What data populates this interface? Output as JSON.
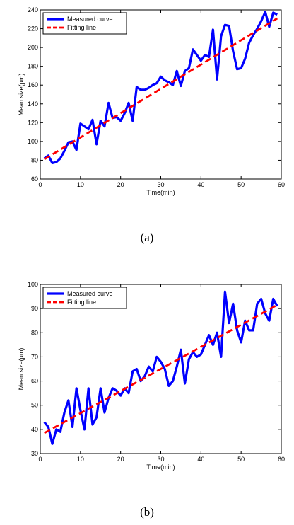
{
  "chart_data": [
    {
      "type": "line",
      "caption": "(a)",
      "xlabel": "Time(min)",
      "ylabel": "Mean size(μm)",
      "xlim": [
        0,
        60
      ],
      "ylim": [
        60,
        240
      ],
      "xticks": [
        0,
        10,
        20,
        30,
        40,
        50,
        60
      ],
      "yticks": [
        60,
        80,
        100,
        120,
        140,
        160,
        180,
        200,
        220,
        240
      ],
      "grid": false,
      "legend_position": "top-left",
      "series": [
        {
          "name": "Measured curve",
          "color": "#0000ff",
          "style": "solid",
          "x": [
            1,
            2,
            3,
            4,
            5,
            6,
            7,
            8,
            9,
            10,
            11,
            12,
            13,
            14,
            15,
            16,
            17,
            18,
            19,
            20,
            21,
            22,
            23,
            24,
            25,
            26,
            27,
            28,
            29,
            30,
            31,
            32,
            33,
            34,
            35,
            36,
            37,
            38,
            39,
            40,
            41,
            42,
            43,
            44,
            45,
            46,
            47,
            48,
            49,
            50,
            51,
            52,
            53,
            54,
            55,
            56,
            57,
            58,
            59
          ],
          "y": [
            82,
            85,
            77,
            78,
            82,
            90,
            99,
            100,
            91,
            119,
            116,
            113,
            123,
            97,
            122,
            116,
            141,
            125,
            126,
            122,
            130,
            141,
            122,
            158,
            155,
            155,
            157,
            160,
            162,
            169,
            165,
            163,
            160,
            175,
            159,
            175,
            178,
            198,
            192,
            186,
            192,
            190,
            219,
            166,
            212,
            224,
            223,
            196,
            177,
            178,
            188,
            205,
            213,
            220,
            228,
            238,
            222,
            237,
            235
          ]
        },
        {
          "name": "Fitting line",
          "color": "#ff0000",
          "style": "dashed",
          "x": [
            1,
            59
          ],
          "y": [
            81,
            231
          ]
        }
      ]
    },
    {
      "type": "line",
      "caption": "(b)",
      "xlabel": "Time(min)",
      "ylabel": "Mean size(μm)",
      "xlim": [
        0,
        60
      ],
      "ylim": [
        30,
        100
      ],
      "xticks": [
        0,
        10,
        20,
        30,
        40,
        50,
        60
      ],
      "yticks": [
        30,
        40,
        50,
        60,
        70,
        80,
        90,
        100
      ],
      "grid": false,
      "legend_position": "top-left",
      "series": [
        {
          "name": "Measured curve",
          "color": "#0000ff",
          "style": "solid",
          "x": [
            1,
            2,
            3,
            4,
            5,
            6,
            7,
            8,
            9,
            10,
            11,
            12,
            13,
            14,
            15,
            16,
            17,
            18,
            19,
            20,
            21,
            22,
            23,
            24,
            25,
            26,
            27,
            28,
            29,
            30,
            31,
            32,
            33,
            34,
            35,
            36,
            37,
            38,
            39,
            40,
            41,
            42,
            43,
            44,
            45,
            46,
            47,
            48,
            49,
            50,
            51,
            52,
            53,
            54,
            55,
            56,
            57,
            58,
            59
          ],
          "y": [
            43,
            41,
            34,
            40,
            39,
            47,
            52,
            41,
            57,
            48,
            40,
            57,
            42,
            45,
            57,
            47,
            53,
            57,
            56,
            54,
            57,
            55,
            64,
            65,
            60,
            62,
            66,
            64,
            70,
            68,
            65,
            58,
            60,
            66,
            73,
            59,
            69,
            72,
            70,
            71,
            75,
            79,
            75,
            80,
            70,
            97,
            84,
            92,
            81,
            76,
            85,
            81,
            81,
            92,
            94,
            88,
            85,
            94,
            91
          ]
        },
        {
          "name": "Fitting line",
          "color": "#ff0000",
          "style": "dashed",
          "x": [
            1,
            59
          ],
          "y": [
            38.5,
            91.5
          ]
        }
      ]
    }
  ]
}
